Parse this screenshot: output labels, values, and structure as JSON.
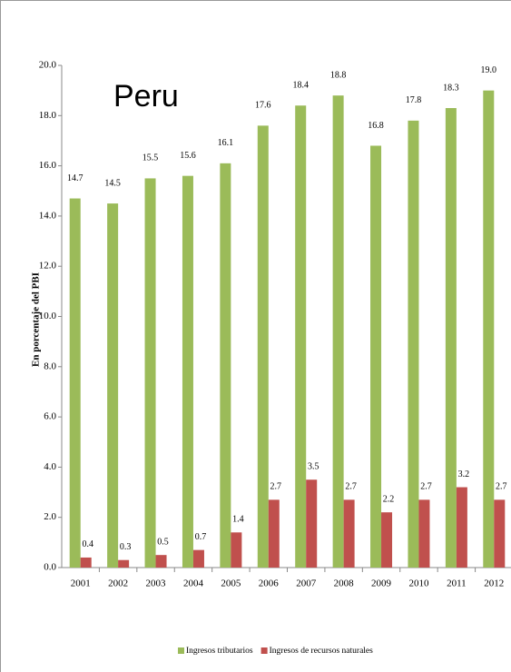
{
  "chart_data": {
    "type": "bar",
    "title": "Peru",
    "y_label": "En porcentaje del PBI",
    "categories": [
      "2001",
      "2002",
      "2003",
      "2004",
      "2005",
      "2006",
      "2007",
      "2008",
      "2009",
      "2010",
      "2011",
      "2012"
    ],
    "series": [
      {
        "name": "Ingresos tributarios",
        "color": "#9bbb59",
        "values": [
          14.7,
          14.5,
          15.5,
          15.6,
          16.1,
          17.6,
          18.4,
          18.8,
          16.8,
          17.8,
          18.3,
          19.0
        ],
        "value_labels": [
          "14.7",
          "14.5",
          "15.5",
          "15.6",
          "16.1",
          "17.6",
          "18.4",
          "18.8",
          "16.8",
          "17.8",
          "18.3",
          "19.0"
        ]
      },
      {
        "name": "Ingresos de recursos naturales",
        "color": "#c0504d",
        "values": [
          0.4,
          0.3,
          0.5,
          0.7,
          1.4,
          2.7,
          3.5,
          2.7,
          2.2,
          2.7,
          3.2,
          2.7
        ],
        "value_labels": [
          "0.4",
          "0.3",
          "0.5",
          "0.7",
          "1.4",
          "2.7",
          "3.5",
          "2.7",
          "2.2",
          "2.7",
          "3.2",
          "2.7"
        ]
      }
    ],
    "ylim": [
      0,
      20
    ],
    "yticks": [
      {
        "value": 0,
        "label": "0.0"
      },
      {
        "value": 2,
        "label": "2.0"
      },
      {
        "value": 4,
        "label": "4.0"
      },
      {
        "value": 6,
        "label": "6.0"
      },
      {
        "value": 8,
        "label": "8.0"
      },
      {
        "value": 10,
        "label": "10.0"
      },
      {
        "value": 12,
        "label": "12.0"
      },
      {
        "value": 14,
        "label": "14.0"
      },
      {
        "value": 16,
        "label": "16.0"
      },
      {
        "value": 18,
        "label": "18.0"
      },
      {
        "value": 20,
        "label": "20.0"
      }
    ],
    "grid": false,
    "legend": "bottom"
  }
}
